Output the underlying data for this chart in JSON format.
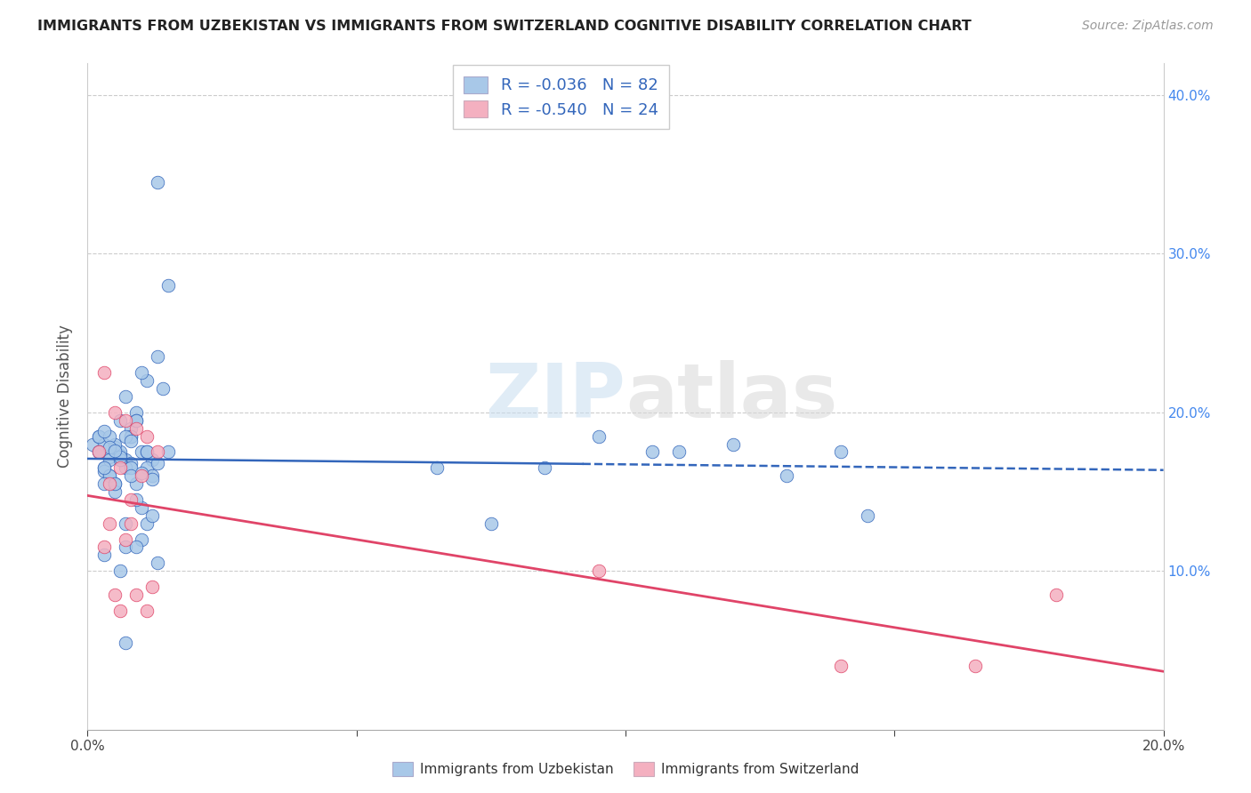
{
  "title": "IMMIGRANTS FROM UZBEKISTAN VS IMMIGRANTS FROM SWITZERLAND COGNITIVE DISABILITY CORRELATION CHART",
  "source": "Source: ZipAtlas.com",
  "ylabel": "Cognitive Disability",
  "xlim": [
    0.0,
    0.2
  ],
  "ylim": [
    0.0,
    0.42
  ],
  "xticks": [
    0.0,
    0.05,
    0.1,
    0.15,
    0.2
  ],
  "yticks_right": [
    0.1,
    0.2,
    0.3,
    0.4
  ],
  "ytick_right_labels": [
    "10.0%",
    "20.0%",
    "30.0%",
    "40.0%"
  ],
  "xtick_labels": [
    "0.0%",
    "",
    "",
    "",
    "20.0%"
  ],
  "color_uzb": "#a8c8e8",
  "color_swi": "#f4b0c0",
  "line_color_uzb": "#3366bb",
  "line_color_swi": "#e04468",
  "r_uzb": -0.036,
  "n_uzb": 82,
  "r_swi": -0.54,
  "n_swi": 24,
  "legend_r_color": "#3366bb",
  "watermark_zip": "ZIP",
  "watermark_atlas": "atlas",
  "uzb_x": [
    0.007,
    0.002,
    0.003,
    0.001,
    0.004,
    0.008,
    0.005,
    0.006,
    0.003,
    0.002,
    0.009,
    0.011,
    0.013,
    0.015,
    0.008,
    0.006,
    0.004,
    0.01,
    0.012,
    0.007,
    0.003,
    0.005,
    0.009,
    0.014,
    0.002,
    0.008,
    0.011,
    0.006,
    0.004,
    0.013,
    0.007,
    0.01,
    0.003,
    0.005,
    0.009,
    0.012,
    0.006,
    0.004,
    0.008,
    0.011,
    0.015,
    0.002,
    0.007,
    0.01,
    0.013,
    0.005,
    0.008,
    0.011,
    0.006,
    0.003,
    0.009,
    0.007,
    0.004,
    0.012,
    0.006,
    0.008,
    0.01,
    0.005,
    0.003,
    0.011,
    0.007,
    0.009,
    0.004,
    0.006,
    0.013,
    0.008,
    0.005,
    0.01,
    0.003,
    0.012,
    0.007,
    0.009,
    0.085,
    0.11,
    0.14,
    0.095,
    0.12,
    0.065,
    0.105,
    0.13,
    0.075,
    0.145
  ],
  "uzb_y": [
    0.17,
    0.175,
    0.165,
    0.18,
    0.172,
    0.168,
    0.178,
    0.173,
    0.163,
    0.185,
    0.155,
    0.22,
    0.235,
    0.28,
    0.19,
    0.195,
    0.16,
    0.175,
    0.17,
    0.165,
    0.18,
    0.155,
    0.2,
    0.215,
    0.175,
    0.185,
    0.165,
    0.17,
    0.16,
    0.345,
    0.13,
    0.14,
    0.155,
    0.15,
    0.145,
    0.16,
    0.175,
    0.17,
    0.185,
    0.13,
    0.175,
    0.185,
    0.115,
    0.12,
    0.105,
    0.18,
    0.165,
    0.175,
    0.1,
    0.11,
    0.195,
    0.21,
    0.185,
    0.135,
    0.17,
    0.16,
    0.225,
    0.155,
    0.165,
    0.175,
    0.185,
    0.195,
    0.178,
    0.172,
    0.168,
    0.182,
    0.176,
    0.162,
    0.188,
    0.158,
    0.055,
    0.115,
    0.165,
    0.175,
    0.175,
    0.185,
    0.18,
    0.165,
    0.175,
    0.16,
    0.13,
    0.135
  ],
  "swi_x": [
    0.003,
    0.005,
    0.007,
    0.009,
    0.002,
    0.011,
    0.013,
    0.006,
    0.004,
    0.008,
    0.01,
    0.003,
    0.007,
    0.012,
    0.005,
    0.009,
    0.006,
    0.011,
    0.004,
    0.008,
    0.14,
    0.165,
    0.095,
    0.18
  ],
  "swi_y": [
    0.225,
    0.2,
    0.195,
    0.19,
    0.175,
    0.185,
    0.175,
    0.165,
    0.155,
    0.145,
    0.16,
    0.115,
    0.12,
    0.09,
    0.085,
    0.085,
    0.075,
    0.075,
    0.13,
    0.13,
    0.04,
    0.04,
    0.1,
    0.085
  ],
  "legend_uzb_label": "Immigrants from Uzbekistan",
  "legend_swi_label": "Immigrants from Switzerland"
}
